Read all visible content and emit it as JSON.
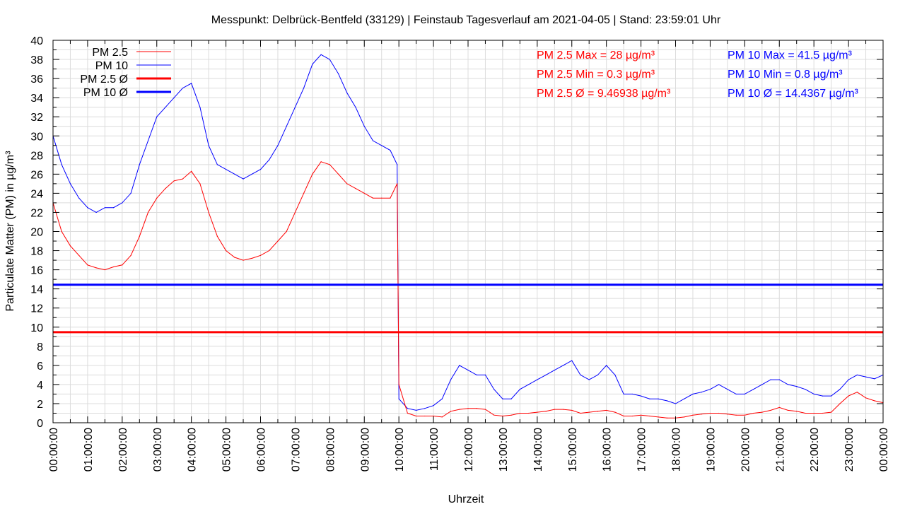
{
  "chart_data": {
    "type": "line",
    "title": "Messpunkt: Delbrück-Bentfeld (33129) | Feinstaub Tagesverlauf am 2021-04-05 | Stand: 23:59:01 Uhr",
    "xlabel": "Uhrzeit",
    "ylabel": "Particulate Matter (PM) in µg/m³",
    "ylim": [
      0,
      40
    ],
    "xlim_hours": [
      0,
      24
    ],
    "yticks": [
      0,
      2,
      4,
      6,
      8,
      10,
      12,
      14,
      16,
      18,
      20,
      22,
      24,
      26,
      28,
      30,
      32,
      34,
      36,
      38,
      40
    ],
    "xtick_labels": [
      "00:00:00",
      "01:00:00",
      "02:00:00",
      "03:00:00",
      "04:00:00",
      "05:00:00",
      "06:00:00",
      "07:00:00",
      "08:00:00",
      "09:00:00",
      "10:00:00",
      "11:00:00",
      "12:00:00",
      "13:00:00",
      "14:00:00",
      "15:00:00",
      "16:00:00",
      "17:00:00",
      "18:00:00",
      "19:00:00",
      "20:00:00",
      "21:00:00",
      "22:00:00",
      "23:00:00",
      "00:00:00"
    ],
    "grid": true,
    "legend_position": "top-left",
    "colors": {
      "pm25": "#ff0000",
      "pm10": "#0000ff"
    },
    "x_hours": [
      0,
      0.25,
      0.5,
      0.75,
      1,
      1.25,
      1.5,
      1.75,
      2,
      2.25,
      2.5,
      2.75,
      3,
      3.25,
      3.5,
      3.75,
      4,
      4.25,
      4.5,
      4.75,
      5,
      5.25,
      5.5,
      5.75,
      6,
      6.25,
      6.5,
      6.75,
      7,
      7.25,
      7.5,
      7.75,
      8,
      8.25,
      8.5,
      8.75,
      9,
      9.25,
      9.5,
      9.75,
      9.95,
      10,
      10.25,
      10.5,
      10.75,
      11,
      11.25,
      11.5,
      11.75,
      12,
      12.25,
      12.5,
      12.75,
      13,
      13.25,
      13.5,
      13.75,
      14,
      14.25,
      14.5,
      14.75,
      15,
      15.25,
      15.5,
      15.75,
      16,
      16.25,
      16.5,
      16.75,
      17,
      17.25,
      17.5,
      17.75,
      18,
      18.25,
      18.5,
      18.75,
      19,
      19.25,
      19.5,
      19.75,
      20,
      20.25,
      20.5,
      20.75,
      21,
      21.25,
      21.5,
      21.75,
      22,
      22.25,
      22.5,
      22.75,
      23,
      23.25,
      23.5,
      23.75,
      24
    ],
    "series": [
      {
        "name": "PM 2.5",
        "values": [
          23,
          20,
          18.5,
          17.5,
          16.5,
          16.2,
          16,
          16.3,
          16.5,
          17.5,
          19.5,
          22,
          23.5,
          24.5,
          25.3,
          25.5,
          26.3,
          25,
          22,
          19.5,
          18,
          17.3,
          17,
          17.2,
          17.5,
          18,
          19,
          20,
          22,
          24,
          26,
          27.3,
          27,
          26,
          25,
          24.5,
          24,
          23.5,
          23.5,
          23.5,
          25,
          4,
          1,
          0.7,
          0.7,
          0.7,
          0.6,
          1.2,
          1.4,
          1.5,
          1.5,
          1.4,
          0.8,
          0.7,
          0.8,
          1,
          1,
          1.1,
          1.2,
          1.4,
          1.4,
          1.3,
          1,
          1.1,
          1.2,
          1.3,
          1.1,
          0.7,
          0.7,
          0.8,
          0.7,
          0.6,
          0.5,
          0.5,
          0.6,
          0.8,
          0.9,
          1,
          1,
          0.9,
          0.8,
          0.8,
          1,
          1.1,
          1.3,
          1.6,
          1.3,
          1.2,
          1,
          1,
          1,
          1.1,
          2,
          2.8,
          3.2,
          2.6,
          2.3,
          2.1
        ]
      },
      {
        "name": "PM 10",
        "values": [
          30,
          27,
          25,
          23.5,
          22.5,
          22,
          22.5,
          22.5,
          23,
          24,
          27,
          29.5,
          32,
          33,
          34,
          35,
          35.5,
          33,
          29,
          27,
          26.5,
          26,
          25.5,
          26,
          26.5,
          27.5,
          29,
          31,
          33,
          35,
          37.5,
          38.5,
          38,
          36.5,
          34.5,
          33,
          31,
          29.5,
          29,
          28.5,
          27,
          2.5,
          1.5,
          1.3,
          1.5,
          1.8,
          2.5,
          4.5,
          6,
          5.5,
          5,
          5,
          3.5,
          2.5,
          2.5,
          3.5,
          4,
          4.5,
          5,
          5.5,
          6,
          6.5,
          5,
          4.5,
          5,
          6,
          5,
          3,
          3,
          2.8,
          2.5,
          2.5,
          2.3,
          2,
          2.5,
          3,
          3.2,
          3.5,
          4,
          3.5,
          3,
          3,
          3.5,
          4,
          4.5,
          4.5,
          4,
          3.8,
          3.5,
          3,
          2.8,
          2.8,
          3.5,
          4.5,
          5,
          4.8,
          4.6,
          5
        ]
      },
      {
        "name": "PM 2.5 Ø",
        "constant": 9.46938
      },
      {
        "name": "PM 10 Ø",
        "constant": 14.4367
      }
    ],
    "annotations": {
      "pm25": [
        "PM 2.5 Max = 28 µg/m³",
        "PM 2.5 Min = 0.3 µg/m³",
        "PM 2.5 Ø = 9.46938 µg/m³"
      ],
      "pm10": [
        "PM 10 Max = 41.5 µg/m³",
        "PM 10 Min = 0.8 µg/m³",
        "PM 10 Ø = 14.4367 µg/m³"
      ]
    }
  }
}
